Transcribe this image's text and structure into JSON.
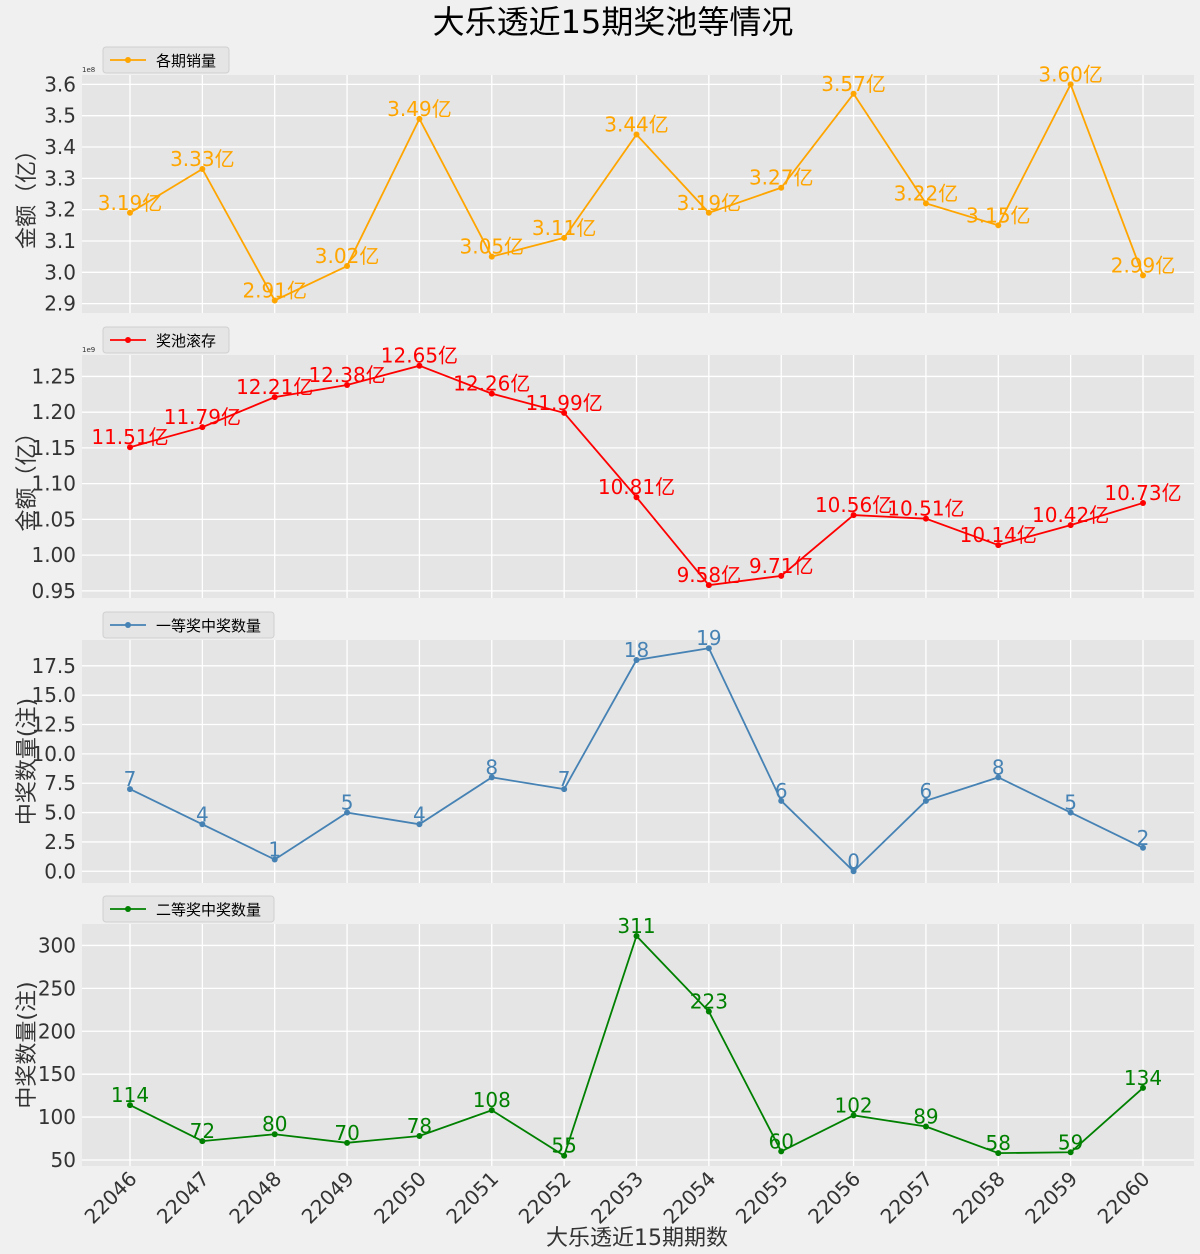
{
  "chart_data": [
    {
      "type": "line",
      "title": "大乐透近15期奖池等情况",
      "xlabel": "大乐透近15期期数",
      "categories": [
        "22046",
        "22047",
        "22048",
        "22049",
        "22050",
        "22051",
        "22052",
        "22053",
        "22054",
        "22055",
        "22056",
        "22057",
        "22058",
        "22059",
        "22060"
      ],
      "grid": true,
      "legend_placement": "top-left",
      "panels": [
        {
          "series": [
            {
              "name": "各期销量",
              "color": "#ffa500",
              "values": [
                319000000,
                333000000,
                291000000,
                302000000,
                349000000,
                305000000,
                311000000,
                344000000,
                319000000,
                327000000,
                357000000,
                322000000,
                315000000,
                360000000,
                299000000
              ],
              "labels": [
                "3.19亿",
                "3.33亿",
                "2.91亿",
                "3.02亿",
                "3.49亿",
                "3.05亿",
                "3.11亿",
                "3.44亿",
                "3.19亿",
                "3.27亿",
                "3.57亿",
                "3.22亿",
                "3.15亿",
                "3.60亿",
                "2.99亿"
              ]
            }
          ],
          "ylabel": "金额（亿）",
          "multiplier": "1e8",
          "ylim": [
            2.87,
            3.63
          ],
          "yticks": [
            "2.9",
            "3.0",
            "3.1",
            "3.2",
            "3.3",
            "3.4",
            "3.5",
            "3.6"
          ],
          "ytick_values": [
            2.9,
            3.0,
            3.1,
            3.2,
            3.3,
            3.4,
            3.5,
            3.6
          ]
        },
        {
          "series": [
            {
              "name": "奖池滚存",
              "color": "#ff0000",
              "values": [
                1151000000,
                1179000000,
                1221000000,
                1238000000,
                1265000000,
                1226000000,
                1199000000,
                1081000000,
                958000000,
                971000000,
                1056000000,
                1051000000,
                1014000000,
                1042000000,
                1073000000
              ],
              "labels": [
                "11.51亿",
                "11.79亿",
                "12.21亿",
                "12.38亿",
                "12.65亿",
                "12.26亿",
                "11.99亿",
                "10.81亿",
                "9.58亿",
                "9.71亿",
                "10.56亿",
                "10.51亿",
                "10.14亿",
                "10.42亿",
                "10.73亿"
              ]
            }
          ],
          "ylabel": "金额（亿）",
          "multiplier": "1e9",
          "ylim": [
            0.94,
            1.28
          ],
          "yticks": [
            "0.95",
            "1.00",
            "1.05",
            "1.10",
            "1.15",
            "1.20",
            "1.25"
          ],
          "ytick_values": [
            0.95,
            1.0,
            1.05,
            1.1,
            1.15,
            1.2,
            1.25
          ]
        },
        {
          "series": [
            {
              "name": "一等奖中奖数量",
              "color": "#4682b4",
              "values": [
                7,
                4,
                1,
                5,
                4,
                8,
                7,
                18,
                19,
                6,
                0,
                6,
                8,
                5,
                2
              ],
              "labels": [
                "7",
                "4",
                "1",
                "5",
                "4",
                "8",
                "7",
                "18",
                "19",
                "6",
                "0",
                "6",
                "8",
                "5",
                "2"
              ]
            }
          ],
          "ylabel": "中奖数量(注)",
          "ylim": [
            -1,
            19.7
          ],
          "yticks": [
            "0.0",
            "2.5",
            "5.0",
            "7.5",
            "10.0",
            "12.5",
            "15.0",
            "17.5"
          ],
          "ytick_values": [
            0,
            2.5,
            5,
            7.5,
            10,
            12.5,
            15,
            17.5
          ]
        },
        {
          "series": [
            {
              "name": "二等奖中奖数量",
              "color": "#008000",
              "values": [
                114,
                72,
                80,
                70,
                78,
                108,
                55,
                311,
                223,
                60,
                102,
                89,
                58,
                59,
                134
              ],
              "labels": [
                "114",
                "72",
                "80",
                "70",
                "78",
                "108",
                "55",
                "311",
                "223",
                "60",
                "102",
                "89",
                "58",
                "59",
                "134"
              ]
            }
          ],
          "ylabel": "中奖数量(注)",
          "ylim": [
            43,
            325
          ],
          "yticks": [
            "50",
            "100",
            "150",
            "200",
            "250",
            "300"
          ],
          "ytick_values": [
            50,
            100,
            150,
            200,
            250,
            300
          ]
        }
      ]
    }
  ]
}
